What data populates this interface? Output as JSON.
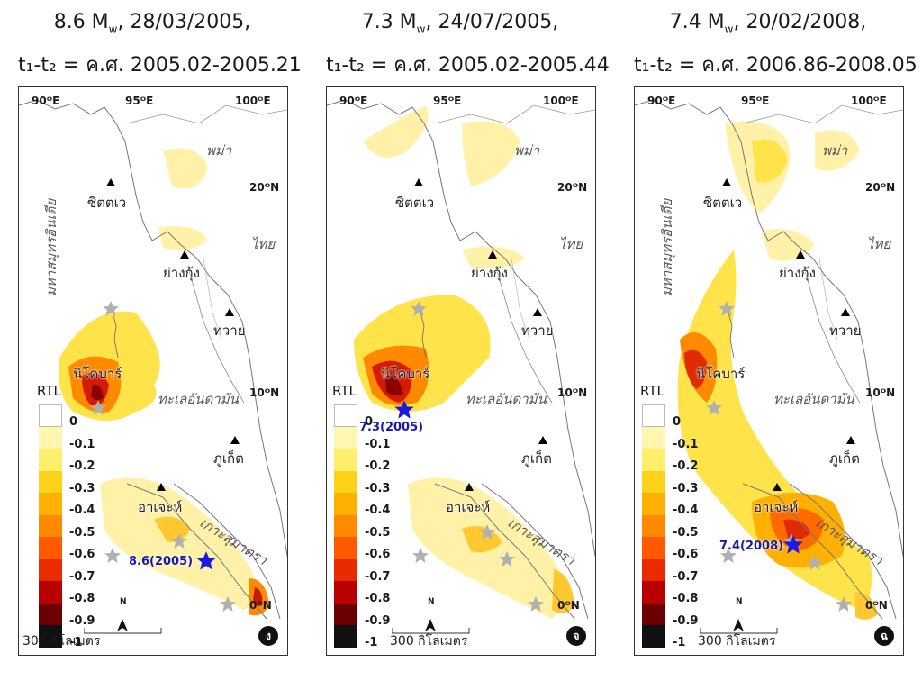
{
  "titles": [
    {
      "line1_mag": "8.6 M",
      "line1_sub": "w",
      "line1_rest": ", 28/03/2005,",
      "line2": "t₁-t₂ = ค.ศ. 2005.02-2005.21"
    },
    {
      "line1_mag": "7.3 M",
      "line1_sub": "w",
      "line1_rest": ", 24/07/2005,",
      "line2": "t₁-t₂ = ค.ศ. 2005.02-2005.44"
    },
    {
      "line1_mag": "7.4 M",
      "line1_sub": "w",
      "line1_rest": ", 20/02/2008,",
      "line2": "t₁-t₂ = ค.ศ. 2006.86-2008.05"
    }
  ],
  "map_labels": {
    "lon_90": "90ᴼE",
    "lon_95": "95ᴼE",
    "lon_100": "100ᴼE",
    "lat_20": "20ᴼN",
    "lat_10": "10ᴼN",
    "lat_0": "0ᴼN",
    "myanmar": "พม่า",
    "thailand": "ไทย",
    "indian_ocean": "มหาสมุทรอินเดีย",
    "sittwe": "ซิตตเว",
    "yangon": "ย่างกุ้ง",
    "dawei": "ทวาย",
    "nicobar": "นิโคบาร์",
    "andaman_sea": "ทะเลอันดามัน",
    "phuket": "ภูเก็ต",
    "aceh": "อาเจะห์",
    "sumatra": "เกาะสุมาตรา",
    "scale": "300 กิโลเมตร",
    "north": "N"
  },
  "legend": {
    "title": "RTL",
    "levels": [
      "0",
      "-0.1",
      "-0.2",
      "-0.3",
      "-0.4",
      "-0.5",
      "-0.6",
      "-0.7",
      "-0.8",
      "-0.9",
      "-1"
    ],
    "colors": [
      "#ffffff",
      "#fff7b0",
      "#ffef6a",
      "#ffd21a",
      "#ffb000",
      "#ff8a00",
      "#ff5a00",
      "#ea2a00",
      "#b80000",
      "#6a0000",
      "#111111"
    ]
  },
  "panels": [
    {
      "badge": "ง",
      "event_label": "8.6(2005)"
    },
    {
      "badge": "จ",
      "event_label": "7.3(2005)"
    },
    {
      "badge": "ฉ",
      "event_label": "7.4(2008)"
    }
  ]
}
